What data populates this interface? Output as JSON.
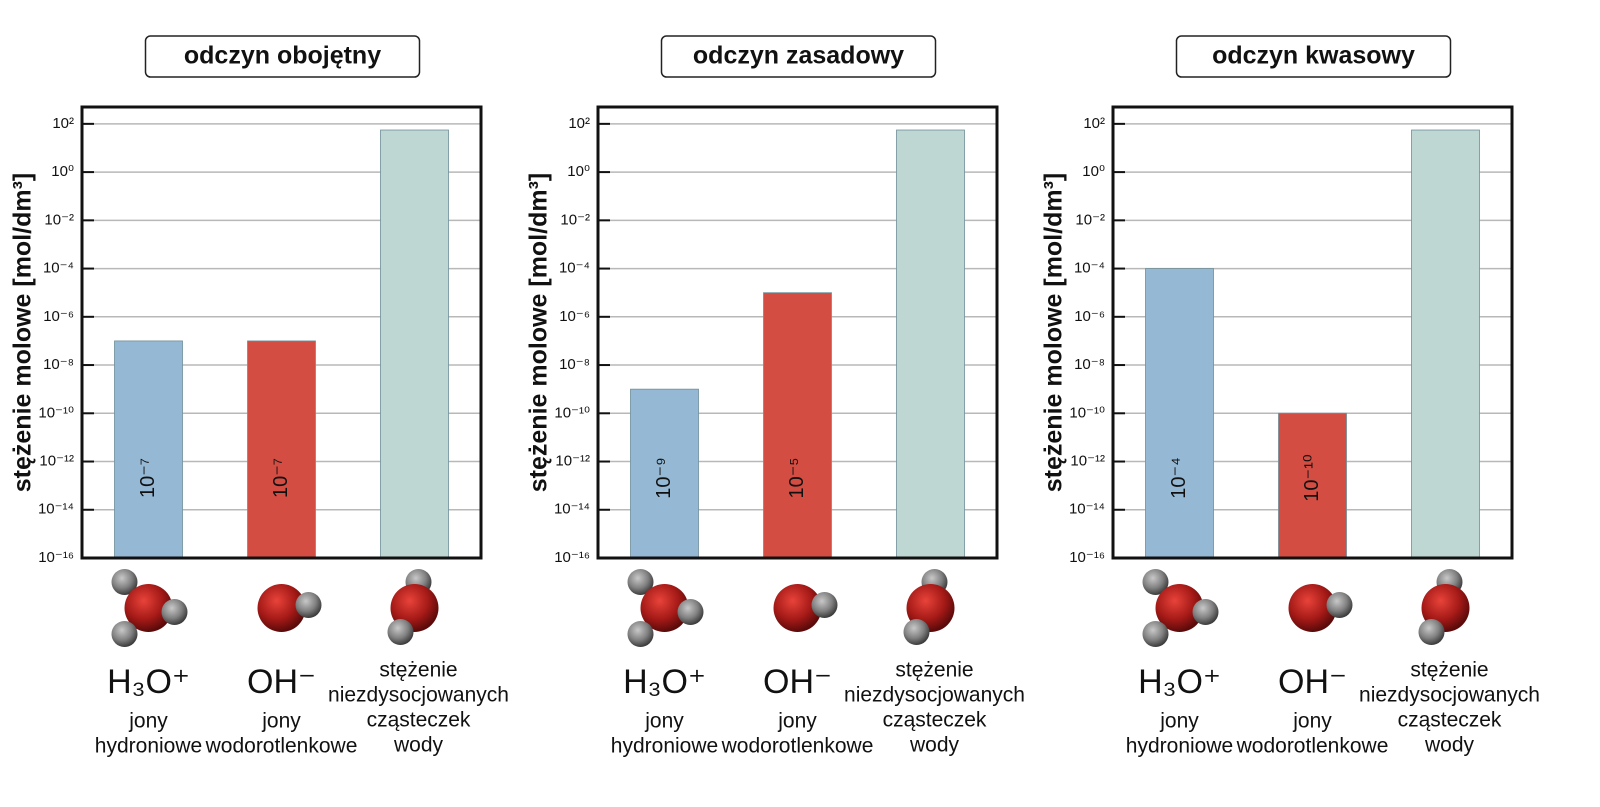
{
  "chart_data": [
    {
      "type": "bar",
      "title": "odczyn obojętny",
      "ylabel": "stężenie molowe [mol/dm³]",
      "categories": [
        "H₃O⁺",
        "OH⁻",
        null
      ],
      "descriptions": [
        [
          "jony",
          "hydroniowe"
        ],
        [
          "jony",
          "wodorotlenkowe"
        ],
        [
          "stężenie",
          "niezdysocjowanych",
          "cząsteczek",
          "wody"
        ]
      ],
      "values": [
        1e-07,
        1e-07,
        55.5
      ],
      "value_labels": [
        "10⁻⁷",
        "10⁻⁷",
        null
      ],
      "colors": [
        "#95b9d4",
        "#d44d43",
        "#bfd7d3"
      ],
      "log_scale": true,
      "grid": true,
      "ylim": [
        1e-16,
        500
      ],
      "yticks": [
        {
          "value": 1e-16,
          "label": "10⁻¹⁶"
        },
        {
          "value": 1e-14,
          "label": "10⁻¹⁴"
        },
        {
          "value": 1e-12,
          "label": "10⁻¹²"
        },
        {
          "value": 1e-10,
          "label": "10⁻¹⁰"
        },
        {
          "value": 1e-08,
          "label": "10⁻⁸"
        },
        {
          "value": 1e-06,
          "label": "10⁻⁶"
        },
        {
          "value": 0.0001,
          "label": "10⁻⁴"
        },
        {
          "value": 0.01,
          "label": "10⁻²"
        },
        {
          "value": 1,
          "label": "10⁰"
        },
        {
          "value": 100,
          "label": "10²"
        }
      ]
    },
    {
      "type": "bar",
      "title": "odczyn zasadowy",
      "ylabel": "stężenie molowe [mol/dm³]",
      "categories": [
        "H₃O⁺",
        "OH⁻",
        null
      ],
      "descriptions": [
        [
          "jony",
          "hydroniowe"
        ],
        [
          "jony",
          "wodorotlenkowe"
        ],
        [
          "stężenie",
          "niezdysocjowanych",
          "cząsteczek",
          "wody"
        ]
      ],
      "values": [
        1e-09,
        1e-05,
        55.5
      ],
      "value_labels": [
        "10⁻⁹",
        "10⁻⁵",
        null
      ],
      "colors": [
        "#95b9d4",
        "#d44d43",
        "#bfd7d3"
      ],
      "log_scale": true,
      "grid": true,
      "ylim": [
        1e-16,
        500
      ],
      "yticks": [
        {
          "value": 1e-16,
          "label": "10⁻¹⁶"
        },
        {
          "value": 1e-14,
          "label": "10⁻¹⁴"
        },
        {
          "value": 1e-12,
          "label": "10⁻¹²"
        },
        {
          "value": 1e-10,
          "label": "10⁻¹⁰"
        },
        {
          "value": 1e-08,
          "label": "10⁻⁸"
        },
        {
          "value": 1e-06,
          "label": "10⁻⁶"
        },
        {
          "value": 0.0001,
          "label": "10⁻⁴"
        },
        {
          "value": 0.01,
          "label": "10⁻²"
        },
        {
          "value": 1,
          "label": "10⁰"
        },
        {
          "value": 100,
          "label": "10²"
        }
      ]
    },
    {
      "type": "bar",
      "title": "odczyn kwasowy",
      "ylabel": "stężenie molowe [mol/dm³]",
      "categories": [
        "H₃O⁺",
        "OH⁻",
        null
      ],
      "descriptions": [
        [
          "jony",
          "hydroniowe"
        ],
        [
          "jony",
          "wodorotlenkowe"
        ],
        [
          "stężenie",
          "niezdysocjowanych",
          "cząsteczek",
          "wody"
        ]
      ],
      "values": [
        0.0001,
        1e-10,
        55.5
      ],
      "value_labels": [
        "10⁻⁴",
        "10⁻¹⁰",
        null
      ],
      "colors": [
        "#95b9d4",
        "#d44d43",
        "#bfd7d3"
      ],
      "log_scale": true,
      "grid": true,
      "ylim": [
        1e-16,
        500
      ],
      "yticks": [
        {
          "value": 1e-16,
          "label": "10⁻¹⁶"
        },
        {
          "value": 1e-14,
          "label": "10⁻¹⁴"
        },
        {
          "value": 1e-12,
          "label": "10⁻¹²"
        },
        {
          "value": 1e-10,
          "label": "10⁻¹⁰"
        },
        {
          "value": 1e-08,
          "label": "10⁻⁸"
        },
        {
          "value": 1e-06,
          "label": "10⁻⁶"
        },
        {
          "value": 0.0001,
          "label": "10⁻⁴"
        },
        {
          "value": 0.01,
          "label": "10⁻²"
        },
        {
          "value": 1,
          "label": "10⁰"
        },
        {
          "value": 100,
          "label": "10²"
        }
      ]
    }
  ]
}
